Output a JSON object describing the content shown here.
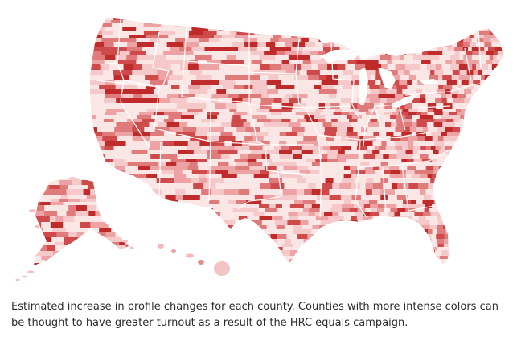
{
  "figure": {
    "caption": "Estimated increase in profile changes for each county. Counties with more intense colors can be thought to have greater turnout as a result of the HRC equals campaign."
  },
  "map": {
    "subject": "US county choropleth (contiguous US, Alaska, Hawaii)",
    "color_scale": [
      "#fbe6e6",
      "#f5c9c9",
      "#eda3a3",
      "#e07b7b",
      "#cf4b4b",
      "#bf2a2a"
    ],
    "state_border_color": "#ffffff",
    "background": "#ffffff"
  }
}
